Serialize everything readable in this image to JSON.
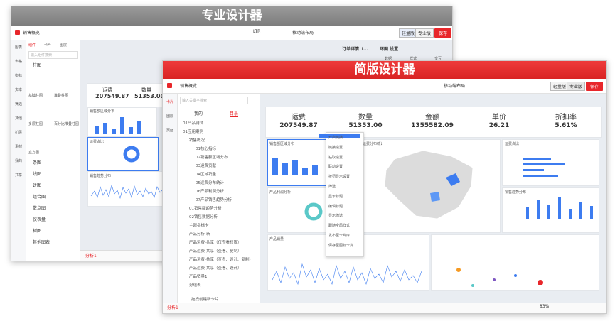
{
  "back": {
    "banner": "专业设计器",
    "title": "销售概览",
    "mobile_layout": "移动端布局",
    "direction": "LTR",
    "lite": "轻量版",
    "pro": "专业版",
    "save": "保存",
    "side_icons": [
      "图表",
      "表格",
      "指标",
      "文本",
      "筛选",
      "其他",
      "扩展",
      "素材",
      "我的",
      "共享"
    ],
    "tabs": [
      "组件",
      "卡片",
      "图层"
    ],
    "search": "输入组件搜索",
    "open_group": "柱图",
    "bar_items": [
      "基础柱图",
      "堆叠柱图",
      "多层柱图",
      "百分比堆叠柱图",
      "直方图"
    ],
    "groups": [
      "条图",
      "线图",
      "饼图",
      "组合图",
      "散点图",
      "仪表盘",
      "树图",
      "其他图表"
    ],
    "panel_title": "订单详情（...",
    "settings_title": "环图 设置",
    "settings_tabs": [
      "数据",
      "样式",
      "交互"
    ],
    "kpis": [
      {
        "label": "运费",
        "value": "207549.87"
      },
      {
        "label": "数量",
        "value": "51353.00"
      }
    ],
    "card_titles": [
      "销售额区域分布",
      "运费占比",
      "销售趋势分布"
    ],
    "sheet": "分析1"
  },
  "front": {
    "banner": "简版设计器",
    "title": "销售概览",
    "mobile_layout": "移动端布局",
    "lite": "轻量版",
    "pro": "专业版",
    "save": "保存",
    "side_icons": [
      "卡片",
      "图层",
      "页面"
    ],
    "tabs": [
      "我的",
      "目录"
    ],
    "search": "输入关键字搜索",
    "tree": [
      {
        "label": "01产品测试"
      },
      {
        "label": "01应用案例",
        "children": [
          {
            "label": "销售概况",
            "children": [
              {
                "label": "01核心指标"
              },
              {
                "label": "02销售额区域分布"
              },
              {
                "label": "03运费贡献"
              },
              {
                "label": "04区域销量"
              },
              {
                "label": "05运费分布统计"
              },
              {
                "label": "06产品利润分析"
              },
              {
                "label": "07产品销售趋势分析"
              }
            ]
          },
          {
            "label": "01销售额趋势分析"
          },
          {
            "label": "02销售数据分析"
          },
          {
            "label": "主题指标卡"
          },
          {
            "label": "产品分析-新"
          },
          {
            "label": "产品运费-共享（仅查看权限）"
          },
          {
            "label": "产品运费-共享（查看、复制）"
          },
          {
            "label": "产品运费-共享（查看、设计、复制）"
          },
          {
            "label": "产品运费-共享（查看、设计）"
          },
          {
            "label": "产品销量1"
          },
          {
            "label": "分组表"
          }
        ]
      }
    ],
    "drag_card": "拖拽创建新卡片",
    "kpis": [
      {
        "label": "运费",
        "value": "207549.87"
      },
      {
        "label": "数量",
        "value": "51353.00"
      },
      {
        "label": "金额",
        "value": "1355582.09"
      },
      {
        "label": "单价",
        "value": "26.21"
      },
      {
        "label": "折扣率",
        "value": "5.61%"
      }
    ],
    "cards": [
      "销售额区域分布",
      "运费占比",
      "运费分布统计",
      "产品利润分析",
      "销售趋势分布",
      "产品销量"
    ],
    "menu": [
      "开启链接",
      "链接设置",
      "钻取设置",
      "联动设置",
      "按钮显示设置",
      "筛选",
      "显示标题",
      "编辑标题",
      "显示筛选",
      "跟随全局样式",
      "发布至卡片库",
      "保存至图标卡片"
    ],
    "sheet": "分析1",
    "zoom": "83%"
  }
}
